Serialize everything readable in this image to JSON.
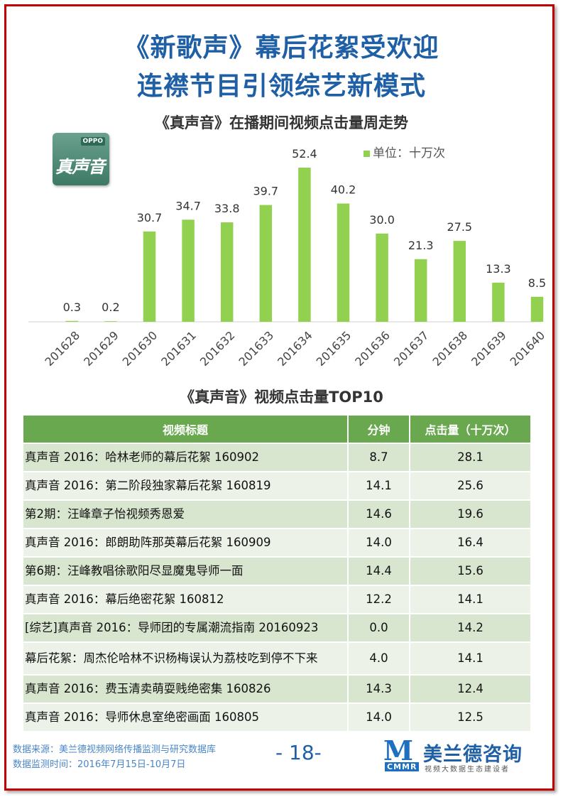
{
  "header": {
    "title_line1": "《新歌声》幕后花絮受欢迎",
    "title_line2": "连襟节目引领综艺新模式"
  },
  "logo": {
    "brand_top": "OPPO",
    "show_name": "真声音"
  },
  "chart_data": {
    "type": "bar",
    "title": "《真声音》在播期间视频点击量周走势",
    "legend": "单位：十万次",
    "legend_position": "top-right",
    "categories": [
      "201628",
      "201629",
      "201630",
      "201631",
      "201632",
      "201633",
      "201634",
      "201635",
      "201636",
      "201637",
      "201638",
      "201639",
      "201640"
    ],
    "values": [
      0.3,
      0.2,
      30.7,
      34.7,
      33.8,
      39.7,
      52.4,
      40.2,
      30.0,
      21.3,
      27.5,
      13.3,
      8.5
    ],
    "value_labels": [
      "0.3",
      "0.2",
      "30.7",
      "34.7",
      "33.8",
      "39.7",
      "52.4",
      "40.2",
      "30.0",
      "21.3",
      "27.5",
      "13.3",
      "8.5"
    ],
    "ylim": [
      0,
      52.4
    ],
    "grid": false,
    "color": "#92d050"
  },
  "table": {
    "title": "《真声音》视频点击量TOP10",
    "headers": [
      "视频标题",
      "分钟",
      "点击量（十万次）"
    ],
    "rows": [
      [
        "真声音 2016：哈林老师的幕后花絮 160902",
        "8.7",
        "28.1"
      ],
      [
        "真声音 2016：第二阶段独家幕后花絮 160819",
        "14.1",
        "25.6"
      ],
      [
        "第2期：汪峰章子怡视频秀恩爱",
        "14.6",
        "19.6"
      ],
      [
        "真声音 2016：郎朗助阵那英幕后花絮 160909",
        "14.0",
        "16.4"
      ],
      [
        "第6期：汪峰教唱徐歌阳尽显魔鬼导师一面",
        "14.4",
        "15.6"
      ],
      [
        "真声音 2016：幕后绝密花絮 160812",
        "12.2",
        "14.1"
      ],
      [
        "[综艺]真声音 2016：导师团的专属潮流指南 20160923",
        "0.0",
        "14.2"
      ],
      [
        "幕后花絮：周杰伦哈林不识杨梅误认为荔枝吃到停不下来",
        "4.0",
        "14.1"
      ],
      [
        "真声音 2016：费玉清卖萌耍贱绝密集 160826",
        "14.3",
        "12.4"
      ],
      [
        "真声音 2016：导师休息室绝密画面 160805",
        "14.0",
        "12.5"
      ]
    ]
  },
  "footer": {
    "source": "数据来源：美兰德视频网络传播监测与研究数据库",
    "period": "数据监测时间：2016年7月15日-10月7日",
    "page_number": "- 18-",
    "brand_mark": "M",
    "brand_abbr": "CMMR",
    "brand_name": "美兰德咨询",
    "brand_slogan": "视频大数据生态建设者"
  }
}
